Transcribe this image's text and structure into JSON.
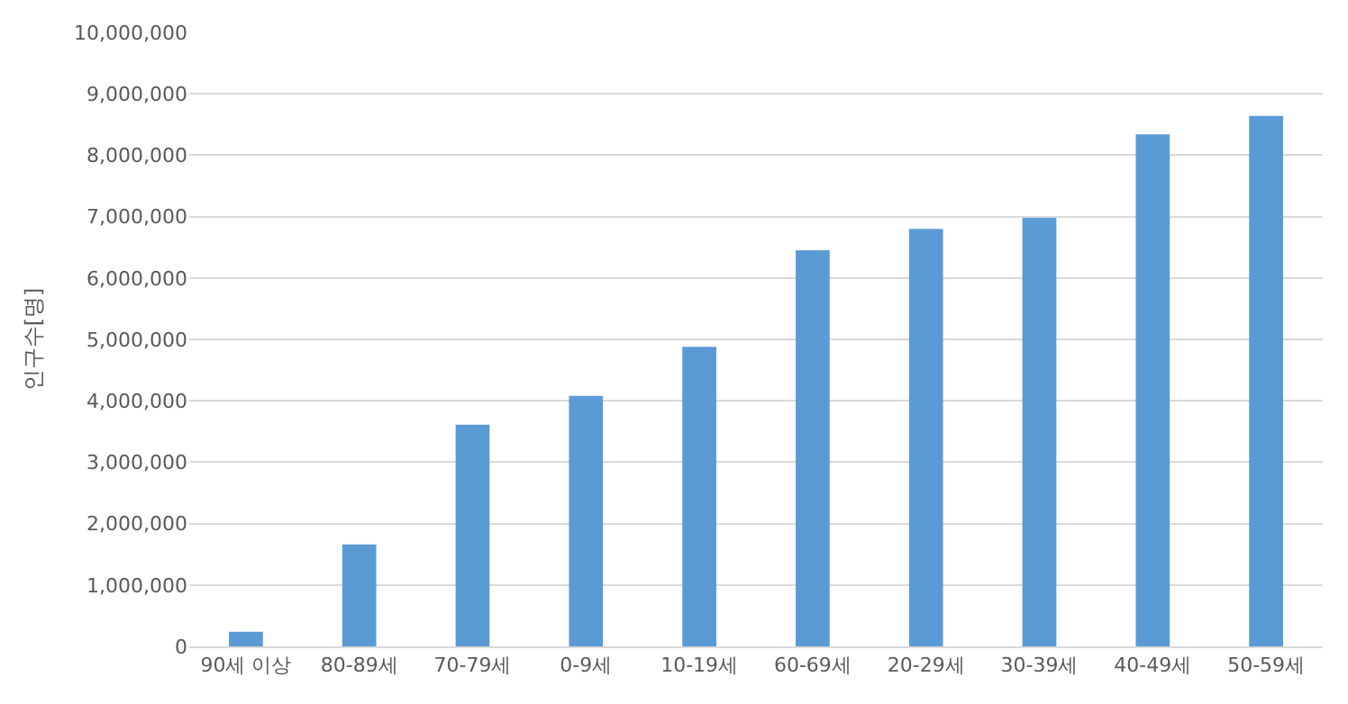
{
  "chart_data": {
    "type": "bar",
    "ylabel": "인구수[명]",
    "categories": [
      "90세 이상",
      "80-89세",
      "70-79세",
      "0-9세",
      "10-19세",
      "60-69세",
      "20-29세",
      "30-39세",
      "40-49세",
      "50-59세"
    ],
    "values": [
      240000,
      1660000,
      3610000,
      4080000,
      4880000,
      6450000,
      6800000,
      6980000,
      8340000,
      8640000
    ],
    "color": "#5b9bd5",
    "ylim": [
      0,
      10000000
    ],
    "yticks": [
      0,
      {
        "value": 1000000,
        "label": "1,000,000"
      },
      {
        "value": 2000000,
        "label": "2,000,000"
      },
      {
        "value": 3000000,
        "label": "3,000,000"
      },
      {
        "value": 4000000,
        "label": "4,000,000"
      },
      {
        "value": 5000000,
        "label": "5,000,000"
      },
      {
        "value": 6000000,
        "label": "6,000,000"
      },
      {
        "value": 7000000,
        "label": "7,000,000"
      },
      {
        "value": 8000000,
        "label": "8,000,000"
      },
      {
        "value": 9000000,
        "label": "9,000,000"
      },
      {
        "value": 10000000,
        "label": "10,000,000"
      }
    ],
    "grid": "y",
    "legend": false
  }
}
